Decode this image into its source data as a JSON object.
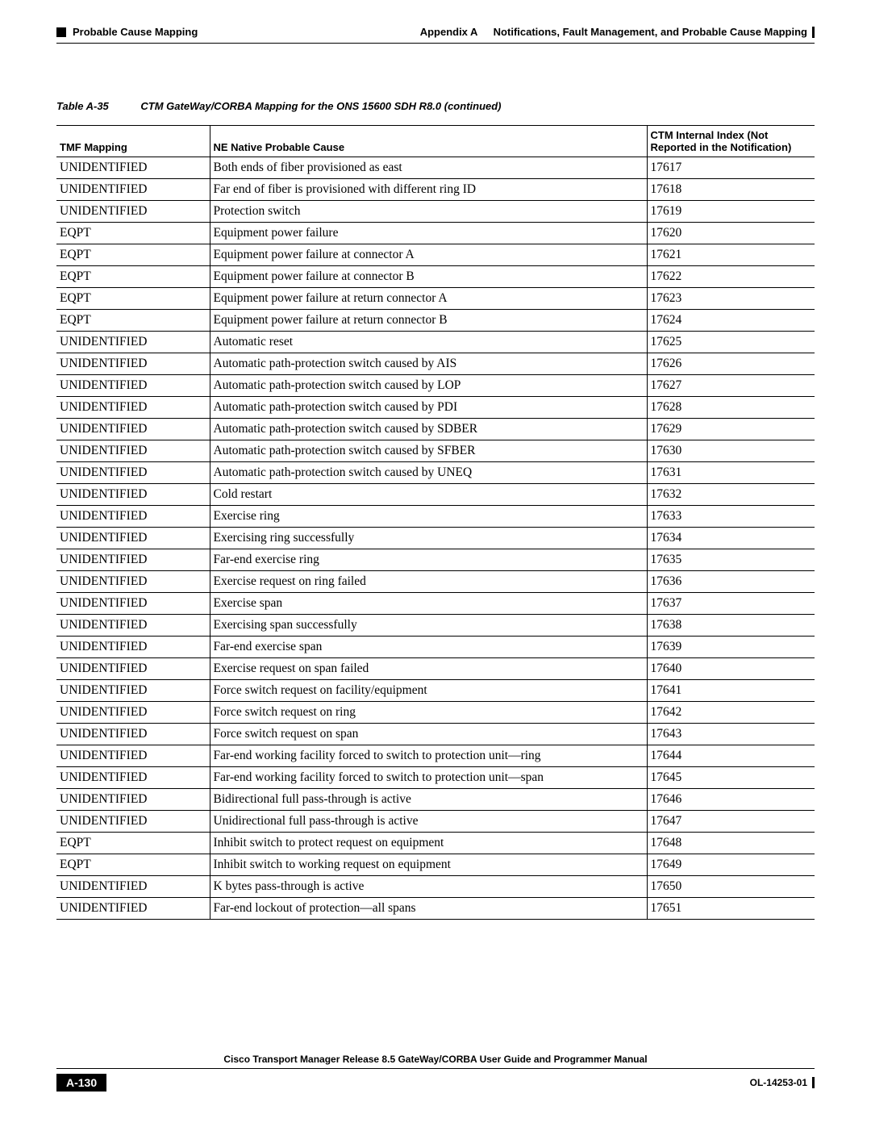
{
  "header": {
    "section": "Probable Cause Mapping",
    "appendix": "Appendix A",
    "appendix_title": "Notifications, Fault Management, and Probable Cause Mapping"
  },
  "table_caption": {
    "number": "Table A-35",
    "title": "CTM GateWay/CORBA Mapping for the ONS 15600 SDH R8.0 (continued)"
  },
  "columns": {
    "c1": "TMF Mapping",
    "c2": "NE Native Probable Cause",
    "c3": "CTM Internal Index (Not Reported in the Notification)"
  },
  "rows": [
    {
      "tmf": "UNIDENTIFIED",
      "cause": "Both ends of fiber provisioned as east",
      "idx": "17617"
    },
    {
      "tmf": "UNIDENTIFIED",
      "cause": "Far end of fiber is provisioned with different ring ID",
      "idx": "17618"
    },
    {
      "tmf": "UNIDENTIFIED",
      "cause": "Protection switch",
      "idx": "17619"
    },
    {
      "tmf": "EQPT",
      "cause": "Equipment power failure",
      "idx": "17620"
    },
    {
      "tmf": "EQPT",
      "cause": "Equipment power failure at connector A",
      "idx": "17621"
    },
    {
      "tmf": "EQPT",
      "cause": "Equipment power failure at connector B",
      "idx": "17622"
    },
    {
      "tmf": "EQPT",
      "cause": "Equipment power failure at return connector A",
      "idx": "17623"
    },
    {
      "tmf": "EQPT",
      "cause": "Equipment power failure at return connector B",
      "idx": "17624"
    },
    {
      "tmf": "UNIDENTIFIED",
      "cause": "Automatic reset",
      "idx": "17625"
    },
    {
      "tmf": "UNIDENTIFIED",
      "cause": "Automatic path-protection switch caused by AIS",
      "idx": "17626"
    },
    {
      "tmf": "UNIDENTIFIED",
      "cause": "Automatic path-protection switch caused by LOP",
      "idx": "17627"
    },
    {
      "tmf": "UNIDENTIFIED",
      "cause": "Automatic path-protection switch caused by PDI",
      "idx": "17628"
    },
    {
      "tmf": "UNIDENTIFIED",
      "cause": "Automatic path-protection switch caused by SDBER",
      "idx": "17629"
    },
    {
      "tmf": "UNIDENTIFIED",
      "cause": "Automatic path-protection switch caused by SFBER",
      "idx": "17630"
    },
    {
      "tmf": "UNIDENTIFIED",
      "cause": "Automatic path-protection switch caused by UNEQ",
      "idx": "17631"
    },
    {
      "tmf": "UNIDENTIFIED",
      "cause": "Cold restart",
      "idx": "17632"
    },
    {
      "tmf": "UNIDENTIFIED",
      "cause": "Exercise ring",
      "idx": "17633"
    },
    {
      "tmf": "UNIDENTIFIED",
      "cause": "Exercising ring successfully",
      "idx": "17634"
    },
    {
      "tmf": "UNIDENTIFIED",
      "cause": "Far-end exercise ring",
      "idx": "17635"
    },
    {
      "tmf": "UNIDENTIFIED",
      "cause": "Exercise request on ring failed",
      "idx": "17636"
    },
    {
      "tmf": "UNIDENTIFIED",
      "cause": "Exercise span",
      "idx": "17637"
    },
    {
      "tmf": "UNIDENTIFIED",
      "cause": "Exercising span successfully",
      "idx": "17638"
    },
    {
      "tmf": "UNIDENTIFIED",
      "cause": "Far-end exercise span",
      "idx": "17639"
    },
    {
      "tmf": "UNIDENTIFIED",
      "cause": "Exercise request on span failed",
      "idx": "17640"
    },
    {
      "tmf": "UNIDENTIFIED",
      "cause": "Force switch request on facility/equipment",
      "idx": "17641"
    },
    {
      "tmf": "UNIDENTIFIED",
      "cause": "Force switch request on ring",
      "idx": "17642"
    },
    {
      "tmf": "UNIDENTIFIED",
      "cause": "Force switch request on span",
      "idx": "17643"
    },
    {
      "tmf": "UNIDENTIFIED",
      "cause": "Far-end working facility forced to switch to protection unit—ring",
      "idx": "17644"
    },
    {
      "tmf": "UNIDENTIFIED",
      "cause": "Far-end working facility forced to switch to protection unit—span",
      "idx": "17645"
    },
    {
      "tmf": "UNIDENTIFIED",
      "cause": "Bidirectional full pass-through is active",
      "idx": "17646"
    },
    {
      "tmf": "UNIDENTIFIED",
      "cause": "Unidirectional full pass-through is active",
      "idx": "17647"
    },
    {
      "tmf": "EQPT",
      "cause": "Inhibit switch to protect request on equipment",
      "idx": "17648"
    },
    {
      "tmf": "EQPT",
      "cause": "Inhibit switch to working request on equipment",
      "idx": "17649"
    },
    {
      "tmf": "UNIDENTIFIED",
      "cause": "K bytes pass-through is active",
      "idx": "17650"
    },
    {
      "tmf": "UNIDENTIFIED",
      "cause": "Far-end lockout of protection—all spans",
      "idx": "17651"
    }
  ],
  "footer": {
    "manual": "Cisco Transport Manager Release 8.5 GateWay/CORBA User Guide and Programmer Manual",
    "page": "A-130",
    "docid": "OL-14253-01"
  }
}
